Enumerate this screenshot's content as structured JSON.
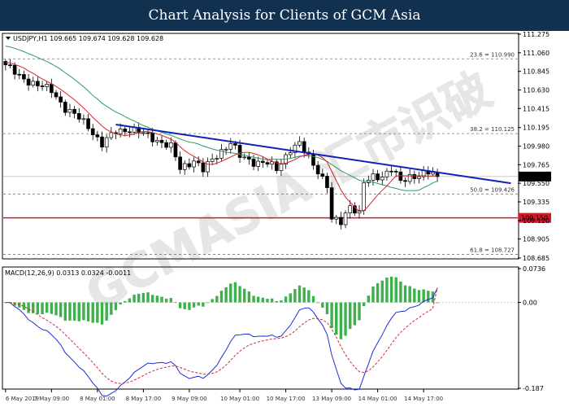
{
  "header": {
    "title": "Chart Analysis for Clients of GCM Asia"
  },
  "chart_data": {
    "type": "candlestick",
    "symbol_line": "USDJPY,H1  109.665 109.674 109.628 109.628",
    "symbol": "USDJPY,H1",
    "ohlc_last": {
      "open": 109.665,
      "high": 109.674,
      "low": 109.628,
      "close": 109.628
    },
    "ylim": [
      108.685,
      111.275
    ],
    "y_ticks": [
      111.275,
      111.06,
      110.845,
      110.63,
      110.415,
      110.195,
      109.98,
      109.765,
      109.55,
      109.335,
      109.12,
      108.905,
      108.685
    ],
    "x_ticks": [
      "6 May 2019",
      "7 May 09:00",
      "8 May 01:00",
      "8 May 17:00",
      "9 May 09:00",
      "10 May 01:00",
      "10 May 17:00",
      "13 May 09:00",
      "14 May 01:00",
      "14 May 17:00"
    ],
    "current_price": {
      "value": 109.628,
      "label": "109.628"
    },
    "support_level": {
      "value": 109.15,
      "label": "109.150"
    },
    "fibonacci": [
      {
        "label": "23.6 = 110.990",
        "value": 110.99
      },
      {
        "label": "38.2 = 110.125",
        "value": 110.125
      },
      {
        "label": "50.0 = 109.426",
        "value": 109.426
      },
      {
        "label": "61.8 = 108.727",
        "value": 108.727
      }
    ],
    "trendline": {
      "from": {
        "bar": 24,
        "value": 110.23
      },
      "to": {
        "bar": 110,
        "value": 109.55
      }
    },
    "total_bars": 95,
    "price_anchors": [
      [
        0,
        110.92
      ],
      [
        3,
        110.78
      ],
      [
        7,
        110.69
      ],
      [
        10,
        110.62
      ],
      [
        13,
        110.42
      ],
      [
        16,
        110.3
      ],
      [
        18,
        110.21
      ],
      [
        21,
        110.0
      ],
      [
        24,
        110.15
      ],
      [
        27,
        110.18
      ],
      [
        30,
        110.12
      ],
      [
        33,
        110.05
      ],
      [
        36,
        109.97
      ],
      [
        38,
        109.72
      ],
      [
        41,
        109.82
      ],
      [
        43,
        109.7
      ],
      [
        46,
        109.88
      ],
      [
        49,
        110.02
      ],
      [
        51,
        109.86
      ],
      [
        54,
        109.8
      ],
      [
        57,
        109.78
      ],
      [
        59,
        109.71
      ],
      [
        62,
        109.95
      ],
      [
        64,
        110.0
      ],
      [
        66,
        109.85
      ],
      [
        68,
        109.7
      ],
      [
        70,
        109.52
      ],
      [
        71,
        109.12
      ],
      [
        73,
        109.1
      ],
      [
        75,
        109.3
      ],
      [
        77,
        109.2
      ],
      [
        78,
        109.55
      ],
      [
        80,
        109.62
      ],
      [
        82,
        109.64
      ],
      [
        84,
        109.72
      ],
      [
        86,
        109.56
      ],
      [
        88,
        109.63
      ],
      [
        90,
        109.65
      ],
      [
        92,
        109.67
      ],
      [
        94,
        109.63
      ]
    ],
    "macd": {
      "label": "MACD(12,26,9) 0.0313 0.0324 -0.0011",
      "fast": 12,
      "slow": 26,
      "signal": 9,
      "values": {
        "macd": 0.0313,
        "signal": 0.0324,
        "histogram": -0.0011
      },
      "ylim": [
        -0.187,
        0.0736
      ],
      "y_ticks": [
        "0.0736",
        "0.00",
        "-0.187"
      ]
    },
    "watermark": "GCMASIA 汇市识破"
  }
}
